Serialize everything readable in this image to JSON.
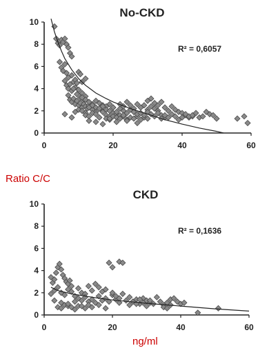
{
  "figure": {
    "ylabel": "Ratio C/C",
    "xlabel": "ng/ml"
  },
  "colors": {
    "marker_fill": "#8a8a8a",
    "marker_stroke": "#4a4a4a",
    "axis": "#222222",
    "trend": "#222222",
    "label_red": "#cc0000"
  },
  "chart_data": [
    {
      "type": "scatter",
      "title": "No-CKD",
      "annotation": "R² = 0,6057",
      "xlim": [
        0,
        60
      ],
      "ylim": [
        0,
        10
      ],
      "xticks": [
        0,
        20,
        40,
        60
      ],
      "yticks": [
        0,
        2,
        4,
        6,
        8,
        10
      ],
      "grid": false,
      "trendline": {
        "type": "power-decay",
        "x": [
          2,
          3,
          4,
          5,
          6,
          8,
          10,
          12,
          15,
          18,
          20,
          25,
          30,
          35,
          40,
          45,
          50,
          52
        ],
        "y": [
          10.3,
          9.1,
          8.2,
          7.4,
          6.7,
          5.7,
          4.9,
          4.3,
          3.6,
          3.1,
          2.8,
          2.2,
          1.7,
          1.2,
          0.8,
          0.45,
          0.15,
          0.0
        ]
      },
      "series": [
        {
          "x": [
            3,
            3.5,
            4,
            4.5,
            5,
            5.5,
            6,
            6.5,
            7,
            7.5,
            8,
            4.5,
            5,
            5.5,
            6,
            6.5,
            7,
            8,
            6,
            6.5,
            7,
            7.5,
            8,
            8.5,
            9,
            9.5,
            10,
            10.5,
            11,
            11.5,
            12,
            7,
            7.5,
            8,
            8.5,
            9,
            9.5,
            10,
            10.5,
            11,
            11.5,
            12,
            12.5,
            13,
            9,
            10,
            11,
            12,
            13,
            14,
            15,
            16,
            17,
            11,
            12,
            13,
            14,
            15,
            16,
            17,
            18,
            19,
            20,
            12,
            13,
            14,
            15,
            16,
            17,
            18,
            19,
            20,
            21,
            22,
            23,
            14,
            15,
            16,
            17,
            18,
            19,
            20,
            21,
            22,
            23,
            24,
            25,
            26,
            18,
            19,
            20,
            21,
            22,
            23,
            24,
            25,
            26,
            27,
            28,
            29,
            30,
            22,
            23,
            24,
            25,
            26,
            27,
            28,
            29,
            30,
            31,
            32,
            33,
            26,
            27,
            28,
            29,
            30,
            31,
            32,
            33,
            34,
            35,
            30,
            31,
            32,
            33,
            34,
            35,
            36,
            37,
            38,
            39,
            34,
            35,
            36,
            37,
            38,
            39,
            40,
            41,
            42,
            43,
            40,
            41,
            42,
            43,
            44,
            45,
            46,
            47,
            48,
            49,
            50,
            56,
            58,
            59,
            6,
            13,
            15,
            17,
            19,
            21,
            24,
            27,
            8,
            10,
            10.5,
            9,
            9.5,
            8.5,
            11,
            12
          ],
          "y": [
            9.6,
            8.5,
            8.1,
            7.9,
            8.4,
            8.2,
            8.5,
            8.0,
            7.7,
            7.2,
            6.9,
            6.4,
            5.9,
            5.6,
            6.2,
            5.4,
            5.0,
            5.2,
            4.7,
            4.3,
            4.0,
            4.4,
            3.8,
            4.6,
            4.1,
            3.5,
            3.9,
            3.2,
            3.6,
            3.0,
            3.3,
            3.4,
            3.0,
            2.8,
            3.1,
            2.6,
            2.9,
            2.5,
            2.7,
            2.3,
            2.6,
            2.4,
            2.2,
            2.5,
            1.9,
            2.1,
            2.0,
            1.8,
            2.3,
            2.1,
            1.9,
            2.2,
            2.0,
            3.2,
            3.0,
            2.8,
            2.6,
            2.9,
            2.7,
            2.5,
            2.4,
            2.6,
            2.3,
            1.6,
            1.5,
            1.8,
            1.7,
            1.4,
            1.9,
            1.6,
            1.5,
            1.8,
            1.7,
            1.6,
            1.5,
            2.5,
            2.3,
            2.2,
            2.4,
            2.1,
            2.0,
            2.3,
            1.9,
            2.2,
            2.0,
            1.8,
            2.1,
            1.9,
            1.3,
            1.2,
            1.5,
            1.4,
            1.3,
            1.6,
            1.2,
            1.4,
            1.3,
            1.5,
            1.2,
            1.4,
            1.3,
            2.6,
            2.4,
            2.8,
            2.5,
            2.2,
            2.6,
            2.3,
            2.5,
            2.1,
            2.4,
            2.2,
            2.0,
            1.9,
            1.7,
            1.8,
            1.6,
            1.9,
            1.7,
            1.5,
            1.8,
            1.6,
            1.4,
            2.9,
            3.1,
            2.7,
            2.5,
            2.8,
            2.3,
            2.0,
            2.4,
            2.1,
            1.9,
            1.3,
            1.6,
            1.4,
            1.7,
            1.5,
            1.2,
            1.8,
            1.6,
            1.4,
            1.5,
            1.4,
            1.7,
            1.5,
            1.6,
            1.8,
            1.4,
            1.5,
            1.9,
            1.7,
            1.6,
            1.3,
            1.3,
            1.5,
            0.9,
            1.7,
            1.1,
            1.0,
            0.8,
            1.3,
            1.0,
            1.1,
            0.9,
            1.4,
            5.5,
            5.3,
            4.8,
            4.5,
            4.0,
            4.6,
            4.9
          ]
        }
      ]
    },
    {
      "type": "scatter",
      "title": "CKD",
      "annotation": "R² = 0,1636",
      "xlim": [
        0,
        60
      ],
      "ylim": [
        0,
        10
      ],
      "xticks": [
        0,
        20,
        40,
        60
      ],
      "yticks": [
        0,
        2,
        4,
        6,
        8,
        10
      ],
      "grid": false,
      "trendline": {
        "type": "power-decay",
        "x": [
          2,
          3,
          4,
          6,
          8,
          10,
          15,
          20,
          25,
          30,
          40,
          50,
          60
        ],
        "y": [
          2.5,
          2.35,
          2.2,
          2.05,
          1.9,
          1.8,
          1.55,
          1.35,
          1.2,
          1.05,
          0.8,
          0.55,
          0.35
        ]
      },
      "series": [
        {
          "x": [
            2,
            2.5,
            3,
            3.5,
            4,
            4.5,
            5,
            5.5,
            6,
            6.5,
            7,
            7.5,
            8,
            2,
            3,
            4,
            5,
            6,
            7,
            8,
            9,
            10,
            11,
            12,
            13,
            14,
            15,
            16,
            17,
            18,
            10,
            11,
            12,
            13,
            14,
            15,
            16,
            17,
            18,
            19,
            20,
            21,
            22,
            20,
            21,
            22,
            23,
            24,
            25,
            26,
            27,
            28,
            29,
            30,
            31,
            25,
            26,
            27,
            28,
            29,
            30,
            31,
            32,
            33,
            34,
            35,
            36,
            37,
            38,
            39,
            40,
            41,
            35,
            36,
            37,
            45,
            51,
            19,
            20,
            22,
            23,
            4,
            5,
            6,
            7,
            8,
            9,
            10,
            12,
            14,
            16,
            18,
            3,
            5,
            7,
            9,
            11,
            13
          ],
          "y": [
            3.4,
            2.9,
            3.2,
            3.8,
            4.3,
            4.6,
            4.1,
            3.6,
            3.3,
            3.0,
            2.8,
            3.1,
            2.6,
            1.9,
            2.2,
            2.5,
            2.0,
            1.8,
            2.3,
            2.1,
            1.7,
            2.4,
            2.0,
            1.9,
            2.6,
            2.2,
            2.8,
            2.5,
            2.1,
            2.3,
            1.5,
            1.3,
            1.6,
            1.2,
            1.4,
            1.1,
            1.7,
            1.3,
            1.5,
            1.2,
            1.8,
            1.4,
            1.1,
            2.0,
            1.7,
            1.5,
            1.9,
            1.3,
            1.6,
            1.2,
            1.4,
            1.0,
            1.5,
            1.3,
            1.1,
            0.9,
            1.2,
            1.0,
            1.4,
            1.1,
            0.8,
            1.3,
            1.0,
            1.6,
            1.2,
            0.9,
            1.1,
            1.4,
            1.5,
            1.2,
            1.0,
            1.1,
            0.7,
            0.6,
            0.9,
            0.2,
            0.6,
            4.7,
            4.3,
            4.8,
            4.7,
            0.7,
            0.6,
            0.9,
            0.8,
            0.7,
            0.5,
            0.8,
            0.6,
            0.7,
            0.9,
            0.6,
            1.3,
            1.1,
            1.0,
            1.2,
            0.8,
            0.9
          ]
        }
      ]
    }
  ]
}
